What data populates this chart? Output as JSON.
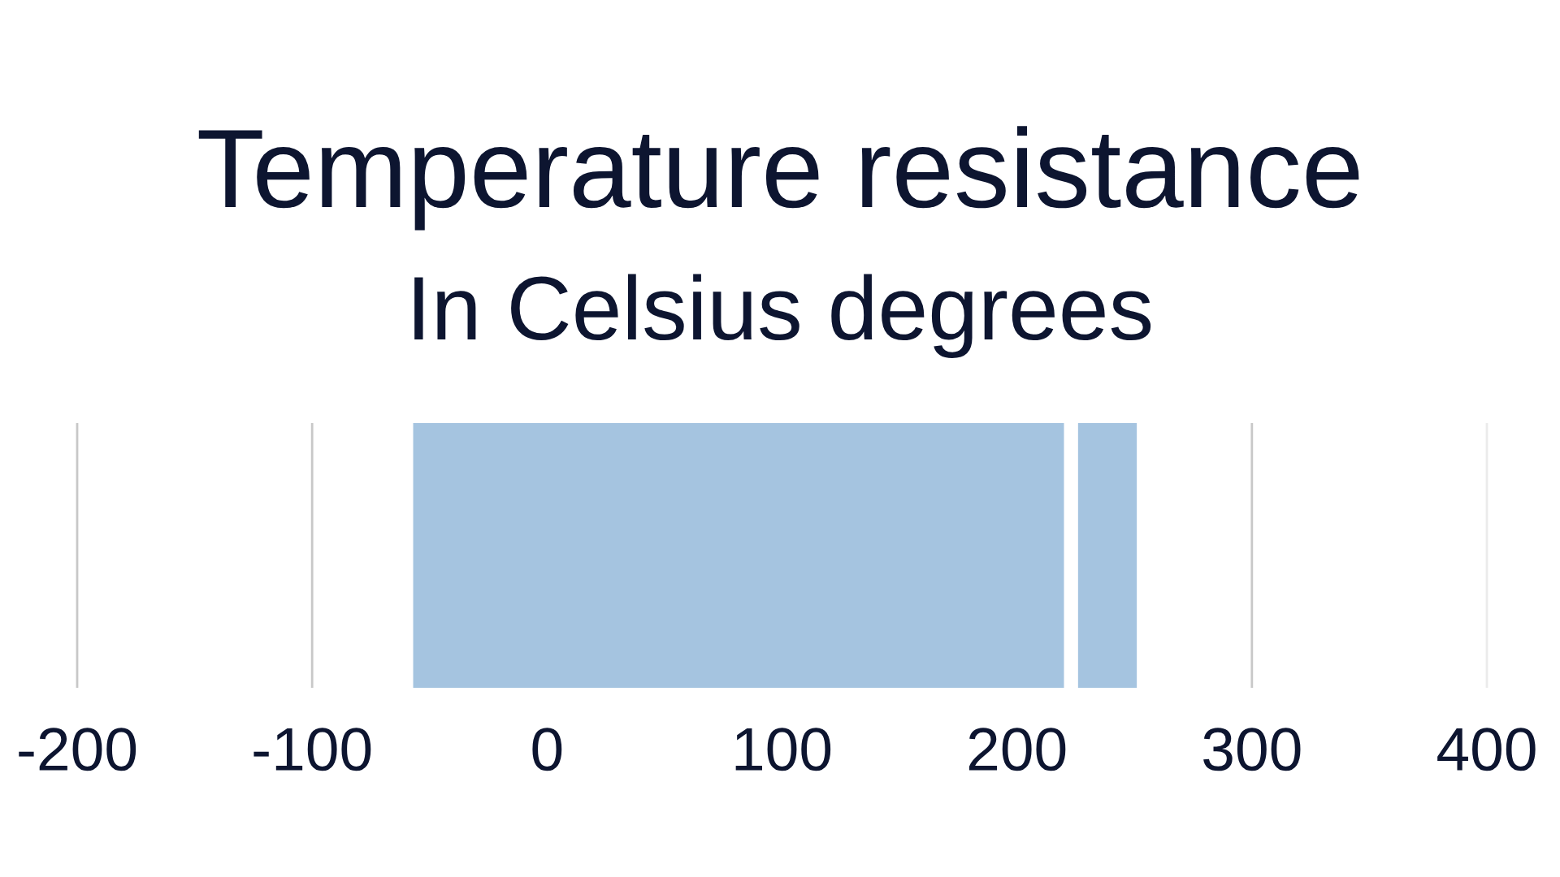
{
  "chart_data": {
    "type": "bar",
    "title": "Temperature resistance",
    "subtitle": "In Celsius degrees",
    "orientation": "horizontal",
    "categories": [
      null
    ],
    "series": [
      {
        "color": "#a5c4e0",
        "values": [
          277
        ],
        "base": [
          -57
        ]
      },
      {
        "color": "#a5c4e0",
        "values": [
          25
        ],
        "base": [
          226
        ]
      }
    ],
    "xlim": [
      -200,
      400
    ],
    "xticks": [
      -200,
      -100,
      0,
      100,
      200,
      300,
      400
    ],
    "tick_labels": "x",
    "ref_lines": [
      {
        "axis": "x",
        "value": -200,
        "color": "#c8c8c8"
      },
      {
        "axis": "x",
        "value": -100,
        "color": "#c8c8c8"
      },
      {
        "axis": "x",
        "value": 300,
        "color": "#c8c8c8"
      },
      {
        "axis": "x",
        "value": 400,
        "color": "#ebebeb"
      }
    ]
  }
}
